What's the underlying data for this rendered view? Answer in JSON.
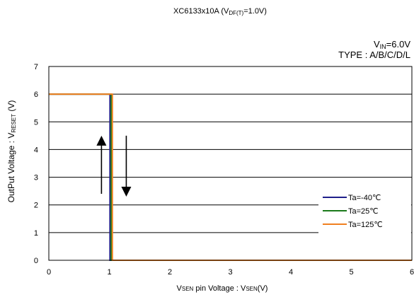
{
  "chart_data": {
    "type": "line",
    "title": {
      "main": "XC6133x10A (V",
      "sub": "DF(T)",
      "tail": "=1.0V)"
    },
    "conditions": {
      "vin": {
        "main": "V",
        "sub": "IN",
        "tail": "=6.0V"
      },
      "type_label": "TYPE : A/B/C/D/L"
    },
    "xlabel": {
      "main": "V",
      "sub": "SEN",
      "tail": " pin Voltage : V",
      "sub2": "SEN",
      "tail2": "(V)"
    },
    "ylabel": {
      "main": "OutPut Voltage : V",
      "sub": "RESET",
      "tail": " (V)"
    },
    "xlim": [
      0,
      6
    ],
    "ylim": [
      0,
      7
    ],
    "xticks": [
      "0",
      "1",
      "2",
      "3",
      "4",
      "5",
      "6"
    ],
    "yticks": [
      "0",
      "1",
      "2",
      "3",
      "4",
      "5",
      "6",
      "7"
    ],
    "grid": "horizontal",
    "legend_position": "bottom-right",
    "series": [
      {
        "name": "Ta=-40℃",
        "color": "#1f1f8a",
        "x": [
          0,
          1.01,
          1.01,
          6
        ],
        "y": [
          6,
          6,
          0,
          0
        ]
      },
      {
        "name": "Ta=25℃",
        "color": "#1a7a1a",
        "x": [
          0,
          1.03,
          1.03,
          6
        ],
        "y": [
          6,
          6,
          0,
          0
        ]
      },
      {
        "name": "Ta=125℃",
        "color": "#f08020",
        "x": [
          0,
          1.05,
          1.05,
          6
        ],
        "y": [
          6,
          6,
          0,
          0
        ]
      }
    ],
    "arrows": [
      {
        "direction": "up",
        "x": 0.87,
        "y_from": 2.4,
        "y_to": 4.5
      },
      {
        "direction": "down",
        "x": 1.28,
        "y_from": 4.5,
        "y_to": 2.3
      }
    ]
  }
}
